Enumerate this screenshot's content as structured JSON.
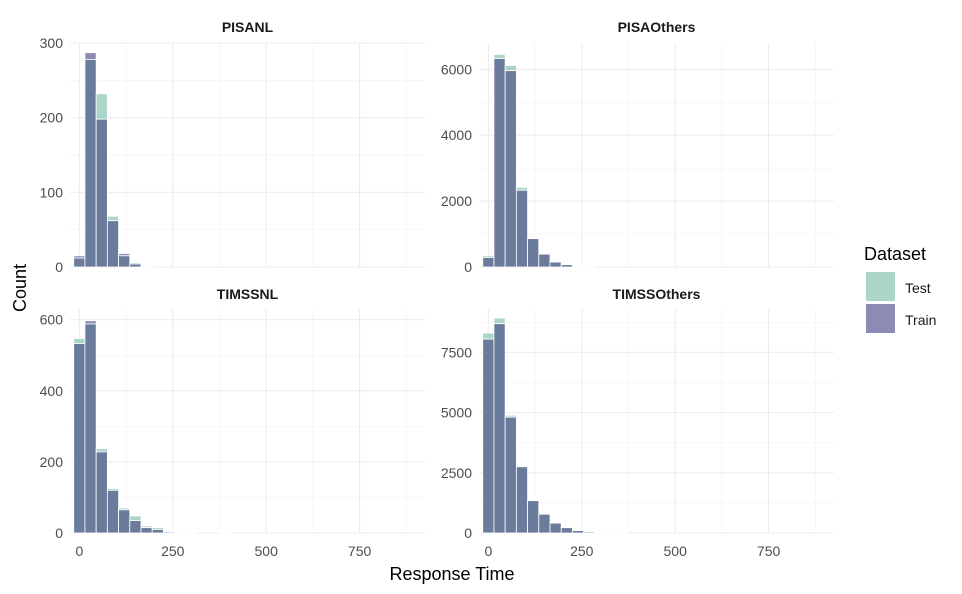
{
  "chart_data": {
    "type": "histogram",
    "xlabel": "Response Time",
    "ylabel": "Count",
    "binwidth": 30,
    "xlim": [
      -25,
      925
    ],
    "x_ticks": [
      0,
      250,
      500,
      750
    ],
    "grid": true,
    "legend": {
      "title": "Dataset",
      "position": "right",
      "entries": [
        {
          "name": "Test",
          "color": "#7fbfad"
        },
        {
          "name": "Train",
          "color": "#3d3d85"
        }
      ]
    },
    "series_colors": {
      "Test": "#7fbfad",
      "Train": "#3d3d85",
      "overlap": "#6a7b9c"
    },
    "panels": [
      {
        "title": "PISANL",
        "ylim": [
          0,
          300
        ],
        "y_ticks": [
          0,
          100,
          200,
          300
        ],
        "bin_centers": [
          0,
          30,
          60,
          90,
          120,
          150,
          180
        ],
        "series": [
          {
            "name": "Test",
            "values": [
              12,
              278,
              232,
              68,
              15,
              6,
              2
            ]
          },
          {
            "name": "Train",
            "values": [
              15,
              287,
              198,
              62,
              18,
              4,
              1
            ]
          }
        ]
      },
      {
        "title": "PISAOthers",
        "ylim": [
          0,
          6800
        ],
        "y_ticks": [
          0,
          2000,
          4000,
          6000
        ],
        "bin_centers": [
          0,
          30,
          60,
          90,
          120,
          150,
          180,
          210,
          240,
          270
        ],
        "series": [
          {
            "name": "Test",
            "values": [
              340,
              6450,
              6120,
              2420,
              880,
              400,
              150,
              70,
              20,
              10
            ]
          },
          {
            "name": "Train",
            "values": [
              290,
              6330,
              5960,
              2330,
              860,
              390,
              170,
              80,
              25,
              10
            ]
          }
        ]
      },
      {
        "title": "TIMSSNL",
        "ylim": [
          0,
          630
        ],
        "y_ticks": [
          0,
          200,
          400,
          600
        ],
        "bin_centers": [
          0,
          30,
          60,
          90,
          120,
          150,
          180,
          210,
          240,
          270,
          300,
          330,
          360,
          390
        ],
        "series": [
          {
            "name": "Test",
            "values": [
              547,
              588,
              237,
              125,
              70,
              48,
              20,
              15,
              5,
              3,
              1,
              0,
              0,
              2
            ]
          },
          {
            "name": "Train",
            "values": [
              533,
              597,
              228,
              120,
              65,
              35,
              15,
              10,
              3,
              1,
              0,
              0,
              0,
              1
            ]
          }
        ]
      },
      {
        "title": "TIMSSOthers",
        "ylim": [
          0,
          9300
        ],
        "y_ticks": [
          0,
          2500,
          5000,
          7500
        ],
        "bin_centers": [
          0,
          30,
          60,
          90,
          120,
          150,
          180,
          210,
          240,
          270,
          300,
          330,
          360
        ],
        "series": [
          {
            "name": "Test",
            "values": [
              8300,
              8920,
              4890,
              2790,
              1360,
              790,
              420,
              230,
              110,
              50,
              20,
              10,
              5
            ]
          },
          {
            "name": "Train",
            "values": [
              8050,
              8690,
              4810,
              2750,
              1340,
              780,
              410,
              220,
              100,
              45,
              20,
              10,
              5
            ]
          }
        ]
      }
    ]
  }
}
